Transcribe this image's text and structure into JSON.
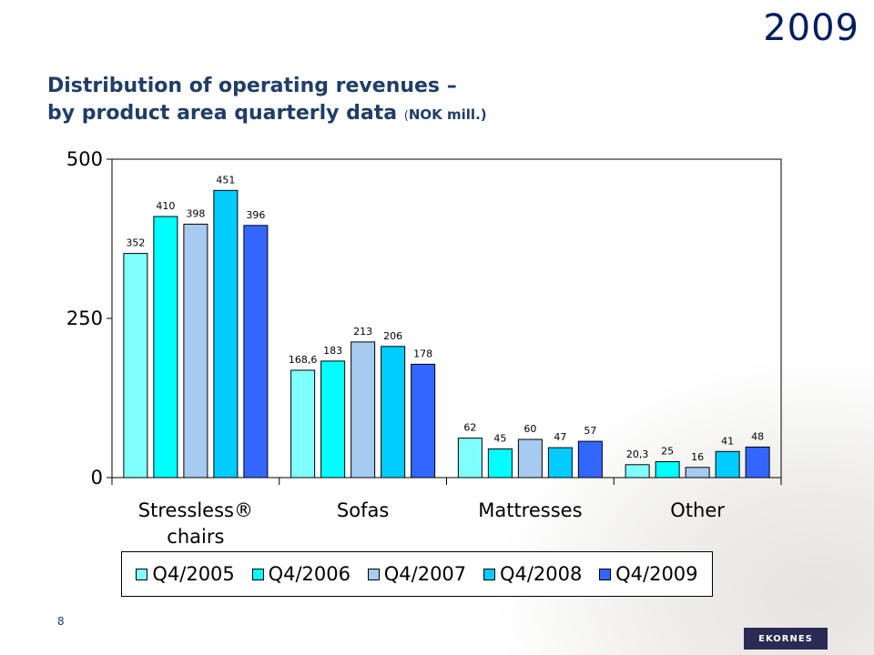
{
  "header": {
    "year": "2009",
    "title_line1": "Distribution of operating revenues –",
    "title_line2": "by product area quarterly data",
    "title_unit_open": "(",
    "title_unit": "NOK mill.",
    "title_unit_close": ")"
  },
  "footer": {
    "page_number": "8",
    "logo_text": "EKORNES"
  },
  "chart_data": {
    "type": "bar",
    "categories": [
      "Stressless® chairs",
      "Sofas",
      "Mattresses",
      "Other"
    ],
    "category_lines": [
      [
        "Stressless®",
        "chairs"
      ],
      [
        "Sofas"
      ],
      [
        "Mattresses"
      ],
      [
        "Other"
      ]
    ],
    "series": [
      {
        "name": "Q4/2005",
        "color": "#80ffff",
        "values": [
          352,
          168.6,
          62,
          20.3
        ],
        "labels": [
          "352",
          "168,6",
          "62",
          "20,3"
        ]
      },
      {
        "name": "Q4/2006",
        "color": "#00ffff",
        "values": [
          410,
          183,
          45,
          25
        ],
        "labels": [
          "410",
          "183",
          "45",
          "25"
        ]
      },
      {
        "name": "Q4/2007",
        "color": "#a6caf0",
        "values": [
          398,
          213,
          60,
          16
        ],
        "labels": [
          "398",
          "213",
          "60",
          "16"
        ]
      },
      {
        "name": "Q4/2008",
        "color": "#00ccff",
        "values": [
          451,
          206,
          47,
          41
        ],
        "labels": [
          "451",
          "206",
          "47",
          "41"
        ]
      },
      {
        "name": "Q4/2009",
        "color": "#3366ff",
        "values": [
          396,
          178,
          57,
          48
        ],
        "labels": [
          "396",
          "178",
          "57",
          "48"
        ]
      }
    ],
    "ylim": [
      0,
      500
    ],
    "yticks": [
      0,
      250,
      500
    ],
    "xlabel": "",
    "ylabel": "",
    "grid": false,
    "legend_position": "bottom"
  }
}
